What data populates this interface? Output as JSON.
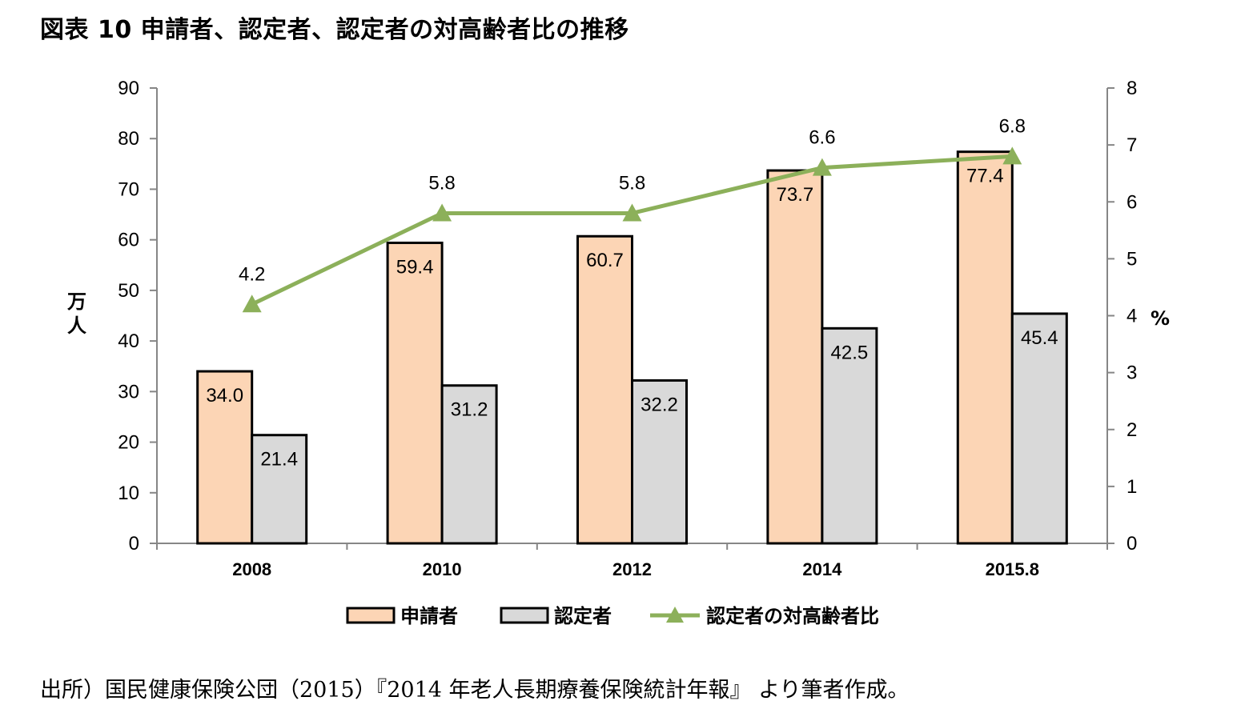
{
  "title": "図表 10 申請者、認定者、認定者の対高齢者比の推移",
  "source": "出所）国民健康保険公団（2015）『2014 年老人長期療養保険統計年報』 より筆者作成。",
  "chart_data": {
    "type": "bar",
    "categories": [
      "2008",
      "2010",
      "2012",
      "2014",
      "2015.8"
    ],
    "series": [
      {
        "name": "申請者",
        "type": "bar",
        "axis": "left",
        "color": "#FCD5B5",
        "values": [
          34.0,
          59.4,
          60.7,
          73.7,
          77.4
        ],
        "labels": [
          "34.0",
          "59.4",
          "60.7",
          "73.7",
          "77.4"
        ]
      },
      {
        "name": "認定者",
        "type": "bar",
        "axis": "left",
        "color": "#D9D9D9",
        "values": [
          21.4,
          31.2,
          32.2,
          42.5,
          45.4
        ],
        "labels": [
          "21.4",
          "31.2",
          "32.2",
          "42.5",
          "45.4"
        ]
      },
      {
        "name": "認定者の対高齢者比",
        "type": "line",
        "axis": "right",
        "color": "#8CB05A",
        "marker": "triangle",
        "values": [
          4.2,
          5.8,
          5.8,
          6.6,
          6.8
        ],
        "labels": [
          "4.2",
          "5.8",
          "5.8",
          "6.6",
          "6.8"
        ]
      }
    ],
    "ylabel_left": "万人",
    "ylabel_right": "%",
    "ylim_left": [
      0,
      90
    ],
    "ylim_right": [
      0,
      8
    ],
    "yticks_left": [
      "0",
      "10",
      "20",
      "30",
      "40",
      "50",
      "60",
      "70",
      "80",
      "90"
    ],
    "yticks_right": [
      "0",
      "1",
      "2",
      "3",
      "4",
      "5",
      "6",
      "7",
      "8"
    ],
    "grid": false,
    "legend_position": "bottom"
  }
}
